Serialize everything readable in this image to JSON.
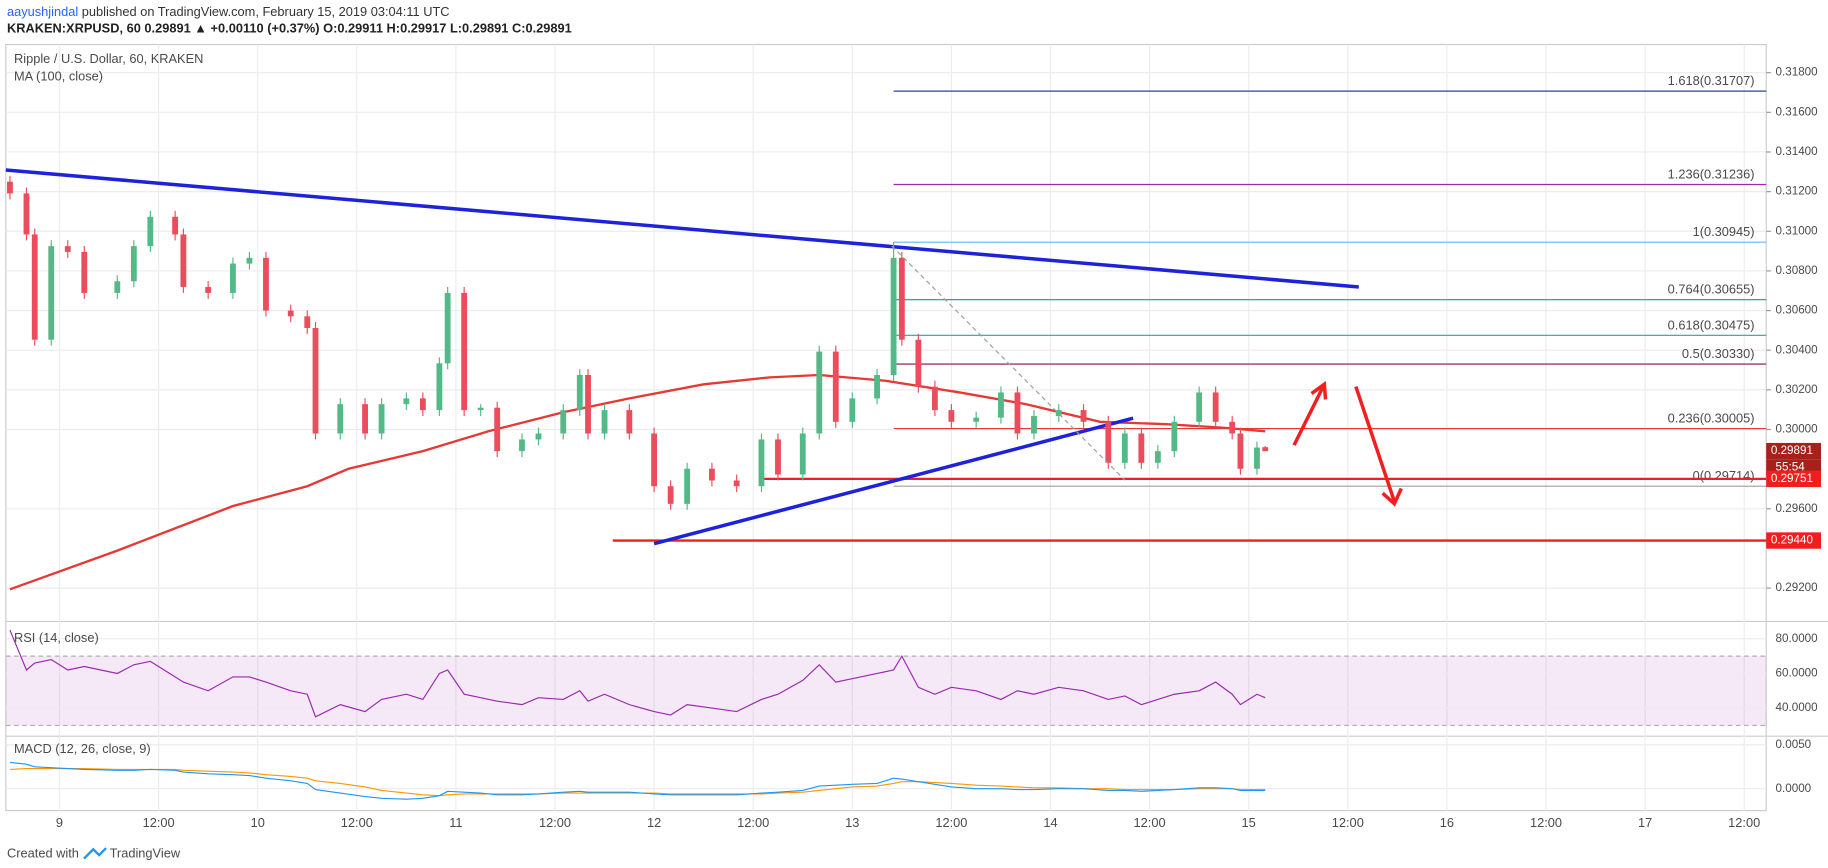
{
  "header": {
    "author": "aayushjindal",
    "published": "published on TradingView.com, February 15, 2019 03:04:11 UTC",
    "symbol": "KRAKEN:XRPUSD, 60",
    "last": "0.29891",
    "change": "▲ +0.00110 (+0.37%)",
    "ohlc": [
      "O:0.29911",
      "H:0.29917",
      "L:0.29891",
      "C:0.29891"
    ]
  },
  "chart_data": {
    "type": "candlestick",
    "title": "Ripple / U.S. Dollar, 60, KRAKEN",
    "up_color": "#53b987",
    "down_color": "#eb4d5c",
    "x": [
      "02-08T18:00",
      "02-08T20:00",
      "02-08T21:00",
      "02-08T23:00",
      "02-09T01:00",
      "02-09T03:00",
      "02-09T07:00",
      "02-09T09:00",
      "02-09T11:00",
      "02-09T14:00",
      "02-09T15:00",
      "02-09T18:00",
      "02-09T21:00",
      "02-09T23:00",
      "02-10T01:00",
      "02-10T04:00",
      "02-10T06:00",
      "02-10T07:00",
      "02-10T10:00",
      "02-10T13:00",
      "02-10T15:00",
      "02-10T18:00",
      "02-10T20:00",
      "02-10T22:00",
      "02-10T23:00",
      "02-11T01:00",
      "02-11T03:00",
      "02-11T05:00",
      "02-11T08:00",
      "02-11T10:00",
      "02-11T13:00",
      "02-11T15:00",
      "02-11T16:00",
      "02-11T18:00",
      "02-11T21:00",
      "02-12T00:00",
      "02-12T02:00",
      "02-12T04:00",
      "02-12T07:00",
      "02-12T10:00",
      "02-12T13:00",
      "02-12T15:00",
      "02-12T18:00",
      "02-12T20:00",
      "02-12T22:00",
      "02-13T00:00",
      "02-13T03:00",
      "02-13T05:00",
      "02-13T06:00",
      "02-13T08:00",
      "02-13T10:00",
      "02-13T12:00",
      "02-13T15:00",
      "02-13T18:00",
      "02-13T20:00",
      "02-13T22:00",
      "02-14T01:00",
      "02-14T04:00",
      "02-14T07:00",
      "02-14T09:00",
      "02-14T11:00",
      "02-14T13:00",
      "02-14T15:00",
      "02-14T18:00",
      "02-14T20:00",
      "02-14T22:00",
      "02-14T23:00",
      "02-15T01:00",
      "02-15T02:00"
    ],
    "open": [
      0.3125,
      0.31191,
      0.30984,
      0.30453,
      0.30925,
      0.30896,
      0.30689,
      0.30748,
      0.30925,
      0.31073,
      0.30984,
      0.30719,
      0.30689,
      0.30837,
      0.30866,
      0.306,
      0.30571,
      0.30512,
      0.2998,
      0.30128,
      0.2998,
      0.30128,
      0.30157,
      0.30098,
      0.30334,
      0.30689,
      0.30098,
      0.3011,
      0.29891,
      0.2995,
      0.2998,
      0.30098,
      0.30275,
      0.2998,
      0.30098,
      0.2998,
      0.29714,
      0.29625,
      0.29802,
      0.29743,
      0.29714,
      0.2995,
      0.29773,
      0.2998,
      0.30393,
      0.30039,
      0.30157,
      0.30275,
      0.30866,
      0.30453,
      0.30216,
      0.30098,
      0.30039,
      0.3006,
      0.30187,
      0.2998,
      0.30068,
      0.30098,
      0.30039,
      0.29832,
      0.2998,
      0.29832,
      0.29891,
      0.30039,
      0.30187,
      0.30039,
      0.2998,
      0.29802,
      0.29911
    ],
    "high": [
      0.3128,
      0.31221,
      0.31014,
      0.30955,
      0.30955,
      0.30926,
      0.30778,
      0.30955,
      0.31103,
      0.31103,
      0.31014,
      0.30749,
      0.30867,
      0.30896,
      0.30896,
      0.3063,
      0.30601,
      0.30542,
      0.30158,
      0.30158,
      0.30158,
      0.30187,
      0.30187,
      0.30364,
      0.30719,
      0.30719,
      0.30128,
      0.3014,
      0.2998,
      0.3001,
      0.30128,
      0.30305,
      0.30305,
      0.30128,
      0.30128,
      0.3001,
      0.29744,
      0.29832,
      0.29832,
      0.29773,
      0.2998,
      0.2998,
      0.3001,
      0.30423,
      0.30423,
      0.30187,
      0.30305,
      0.30945,
      0.30896,
      0.30483,
      0.30246,
      0.30128,
      0.3009,
      0.30217,
      0.30217,
      0.30098,
      0.30128,
      0.30128,
      0.30069,
      0.3001,
      0.3001,
      0.29921,
      0.30069,
      0.30217,
      0.30217,
      0.30069,
      0.3001,
      0.29939,
      0.29917
    ],
    "low": [
      0.31161,
      0.30954,
      0.30423,
      0.30423,
      0.30866,
      0.30659,
      0.30659,
      0.30718,
      0.30895,
      0.30954,
      0.30689,
      0.30659,
      0.30659,
      0.30807,
      0.3057,
      0.30541,
      0.30482,
      0.2995,
      0.2995,
      0.2995,
      0.2995,
      0.30098,
      0.30068,
      0.30068,
      0.30304,
      0.30068,
      0.30068,
      0.29861,
      0.29861,
      0.2992,
      0.2995,
      0.30068,
      0.2995,
      0.2995,
      0.2995,
      0.29684,
      0.29595,
      0.29595,
      0.29713,
      0.29684,
      0.29684,
      0.29743,
      0.29743,
      0.2995,
      0.30009,
      0.30009,
      0.30127,
      0.30245,
      0.30423,
      0.30186,
      0.30068,
      0.30009,
      0.30009,
      0.3003,
      0.2995,
      0.2995,
      0.30038,
      0.30009,
      0.29802,
      0.29802,
      0.29802,
      0.29802,
      0.29861,
      0.30009,
      0.30009,
      0.2995,
      0.29772,
      0.29772,
      0.29891
    ],
    "close": [
      0.31191,
      0.30984,
      0.30453,
      0.30925,
      0.30896,
      0.30689,
      0.30748,
      0.30925,
      0.31073,
      0.30984,
      0.30719,
      0.30689,
      0.30837,
      0.30866,
      0.306,
      0.30571,
      0.30512,
      0.2998,
      0.30128,
      0.2998,
      0.30128,
      0.30157,
      0.30098,
      0.30334,
      0.30689,
      0.30098,
      0.3011,
      0.29891,
      0.2995,
      0.2998,
      0.30098,
      0.30275,
      0.2998,
      0.30098,
      0.2998,
      0.29714,
      0.29625,
      0.29802,
      0.29743,
      0.29714,
      0.2995,
      0.29773,
      0.2998,
      0.30393,
      0.30039,
      0.30157,
      0.30275,
      0.30866,
      0.30453,
      0.30216,
      0.30098,
      0.30039,
      0.3006,
      0.30187,
      0.2998,
      0.30068,
      0.30098,
      0.30039,
      0.29832,
      0.2998,
      0.29832,
      0.29891,
      0.30039,
      0.30187,
      0.30039,
      0.2998,
      0.29802,
      0.29909,
      0.29891
    ],
    "xlim": [
      "02-08T17:30",
      "02-17T14:40"
    ],
    "ylim": [
      0.29035,
      0.31942
    ],
    "yticks": [
      {
        "value": 0.318,
        "label": "0.31800"
      },
      {
        "value": 0.316,
        "label": "0.31600"
      },
      {
        "value": 0.314,
        "label": "0.31400"
      },
      {
        "value": 0.312,
        "label": "0.31200"
      },
      {
        "value": 0.31,
        "label": "0.31000"
      },
      {
        "value": 0.308,
        "label": "0.30800"
      },
      {
        "value": 0.306,
        "label": "0.30600"
      },
      {
        "value": 0.304,
        "label": "0.30400"
      },
      {
        "value": 0.302,
        "label": "0.30200"
      },
      {
        "value": 0.3,
        "label": "0.30000"
      },
      {
        "value": 0.296,
        "label": "0.29600"
      },
      {
        "value": 0.292,
        "label": "0.29200"
      }
    ],
    "xticks": [
      {
        "value": "02-09T00:00",
        "label": "9"
      },
      {
        "value": "02-09T12:00",
        "label": "12:00"
      },
      {
        "value": "02-10T00:00",
        "label": "10"
      },
      {
        "value": "02-10T12:00",
        "label": "12:00"
      },
      {
        "value": "02-11T00:00",
        "label": "11"
      },
      {
        "value": "02-11T12:00",
        "label": "12:00"
      },
      {
        "value": "02-12T00:00",
        "label": "12"
      },
      {
        "value": "02-12T12:00",
        "label": "12:00"
      },
      {
        "value": "02-13T00:00",
        "label": "13"
      },
      {
        "value": "02-13T12:00",
        "label": "12:00"
      },
      {
        "value": "02-14T00:00",
        "label": "14"
      },
      {
        "value": "02-14T12:00",
        "label": "12:00"
      },
      {
        "value": "02-15T00:00",
        "label": "15"
      },
      {
        "value": "02-15T12:00",
        "label": "12:00"
      },
      {
        "value": "02-16T00:00",
        "label": "16"
      },
      {
        "value": "02-16T12:00",
        "label": "12:00"
      },
      {
        "value": "02-17T00:00",
        "label": "17"
      },
      {
        "value": "02-17T12:00",
        "label": "12:00"
      }
    ],
    "grid": true,
    "ma": {
      "name": "MA (100, close)",
      "color": "#e53935",
      "x": [
        "02-08T18:00",
        "02-09T07:00",
        "02-09T21:00",
        "02-10T06:00",
        "02-10T11:00",
        "02-10T20:00",
        "02-11T04:00",
        "02-11T13:00",
        "02-11T21:00",
        "02-12T06:00",
        "02-12T14:00",
        "02-12T20:00",
        "02-13T04:00",
        "02-13T13:00",
        "02-13T21:00",
        "02-14T06:00",
        "02-14T14:00",
        "02-14T21:00",
        "02-15T02:00"
      ],
      "values": [
        0.29194,
        0.29389,
        0.29614,
        0.29714,
        0.29802,
        0.29891,
        0.29992,
        0.30087,
        0.30157,
        0.30228,
        0.30263,
        0.30275,
        0.30246,
        0.30187,
        0.30128,
        0.30039,
        0.30027,
        0.30009,
        0.29991
      ]
    },
    "trendlines": [
      {
        "color": "#1e22d8",
        "x": [
          "02-08T17:30",
          "02-15T13:20"
        ],
        "values": [
          0.31309,
          0.30719
        ]
      },
      {
        "color": "#1e22d8",
        "x": [
          "02-12T00:00",
          "02-14T10:00"
        ],
        "values": [
          0.29424,
          0.30057
        ]
      }
    ],
    "levels": [
      {
        "color": "#f01f1f",
        "x_start": "02-12T13:00",
        "value": 0.29751
      },
      {
        "color": "#f01f1f",
        "x_start": "02-11T19:00",
        "value": 0.2944
      }
    ],
    "fib_start": "02-13T05:00",
    "fib": [
      {
        "label": "1.618(0.31707)",
        "value": 0.31707,
        "color": "#2f3ea8"
      },
      {
        "label": "1.236(0.31236)",
        "value": 0.31236,
        "color": "#9c27b0"
      },
      {
        "label": "1(0.30945)",
        "value": 0.30945,
        "color": "#64b5f6"
      },
      {
        "label": "0.764(0.30655)",
        "value": 0.30655,
        "color": "#1b8fb5"
      },
      {
        "label": "0.618(0.30475)",
        "value": 0.30475,
        "color": "#26a69a"
      },
      {
        "label": "0.5(0.30330)",
        "value": 0.3033,
        "color": "#880e4f"
      },
      {
        "label": "0.236(0.30005)",
        "value": 0.30005,
        "color": "#e53935"
      },
      {
        "label": "0(0.29714)",
        "value": 0.29714,
        "color": "#9e9e9e"
      }
    ],
    "price_tags": [
      {
        "value": 0.29891,
        "label": "0.29891",
        "color": "#a8201a"
      },
      {
        "value": 0.29751,
        "label": "0.29751",
        "color": "#f01f1f"
      },
      {
        "value": 0.2944,
        "label": "0.29440",
        "color": "#f01f1f"
      }
    ],
    "countdown": "55:54",
    "rsi": {
      "name": "RSI (14, close)",
      "color": "#9c27b0",
      "ylim": [
        24.1,
        89.7
      ],
      "yticks": [
        {
          "value": 80,
          "label": "80.0000"
        },
        {
          "value": 60,
          "label": "60.0000"
        },
        {
          "value": 40,
          "label": "40.0000"
        }
      ],
      "band": [
        30,
        70
      ],
      "values": [
        85,
        62,
        66,
        68,
        62,
        64,
        60,
        65,
        67,
        58,
        55,
        50,
        58,
        58,
        55,
        50,
        48,
        35,
        42,
        38,
        45,
        48,
        45,
        60,
        62,
        48,
        46,
        44,
        42,
        46,
        45,
        50,
        44,
        48,
        42,
        38,
        36,
        42,
        40,
        38,
        45,
        48,
        56,
        65,
        55,
        57,
        60,
        62,
        70,
        52,
        48,
        52,
        50,
        45,
        50,
        48,
        52,
        50,
        45,
        47,
        42,
        45,
        48,
        50,
        55,
        48,
        42,
        48,
        46
      ]
    },
    "macd": {
      "name": "MACD (12, 26, close, 9)",
      "ylim": [
        -0.0025,
        0.00592
      ],
      "yticks": [
        {
          "value": 0.005,
          "label": "0.0050"
        },
        {
          "value": 0,
          "label": "0.0000"
        }
      ],
      "macd_line": {
        "color": "#2196f3",
        "values": [
          0.003,
          0.0028,
          0.0025,
          0.0024,
          0.0023,
          0.0022,
          0.0021,
          0.0021,
          0.0022,
          0.0021,
          0.0019,
          0.0017,
          0.0016,
          0.0015,
          0.0012,
          0.0009,
          0.0006,
          -0.0001,
          -0.0005,
          -0.0009,
          -0.0011,
          -0.0012,
          -0.0011,
          -0.0008,
          -0.0003,
          -0.0004,
          -0.0005,
          -0.0007,
          -0.0007,
          -0.0006,
          -0.0004,
          -0.0003,
          -0.0004,
          -0.0004,
          -0.0004,
          -0.0006,
          -0.0007,
          -0.0007,
          -0.0007,
          -0.0007,
          -0.0005,
          -0.0004,
          -0.0002,
          0.0003,
          0.0004,
          0.0005,
          0.0006,
          0.0012,
          0.0011,
          0.0008,
          0.0005,
          0.0002,
          0,
          0,
          -0.0001,
          -0.0001,
          0,
          0,
          -0.0002,
          -0.0002,
          -0.0003,
          -0.0002,
          -0.0001,
          0.0001,
          0.0001,
          0,
          -0.0002,
          -0.0002,
          -0.0002
        ]
      },
      "signal_line": {
        "color": "#ff9800",
        "values": [
          0.0022,
          0.0023,
          0.0023,
          0.0023,
          0.0023,
          0.0023,
          0.0022,
          0.0022,
          0.0022,
          0.0022,
          0.0021,
          0.002,
          0.0019,
          0.0018,
          0.0016,
          0.0014,
          0.0012,
          0.0009,
          0.0006,
          0.0002,
          -0.0002,
          -0.0005,
          -0.0007,
          -0.0008,
          -0.0007,
          -0.0006,
          -0.0006,
          -0.0006,
          -0.0006,
          -0.0006,
          -0.0005,
          -0.0005,
          -0.0005,
          -0.0005,
          -0.0005,
          -0.0005,
          -0.0006,
          -0.0006,
          -0.0006,
          -0.0006,
          -0.0006,
          -0.0005,
          -0.0004,
          -0.0002,
          0,
          0.0002,
          0.0003,
          0.0006,
          0.0008,
          0.0008,
          0.0007,
          0.0006,
          0.0004,
          0.0003,
          0.0002,
          0.0001,
          0.0001,
          0,
          0,
          -0.0001,
          -0.0001,
          -0.0001,
          -0.0001,
          0,
          0,
          0,
          -0.0001,
          -0.0001,
          -0.0001
        ]
      }
    }
  },
  "footer": {
    "created": "Created with",
    "brand": "TradingView"
  }
}
